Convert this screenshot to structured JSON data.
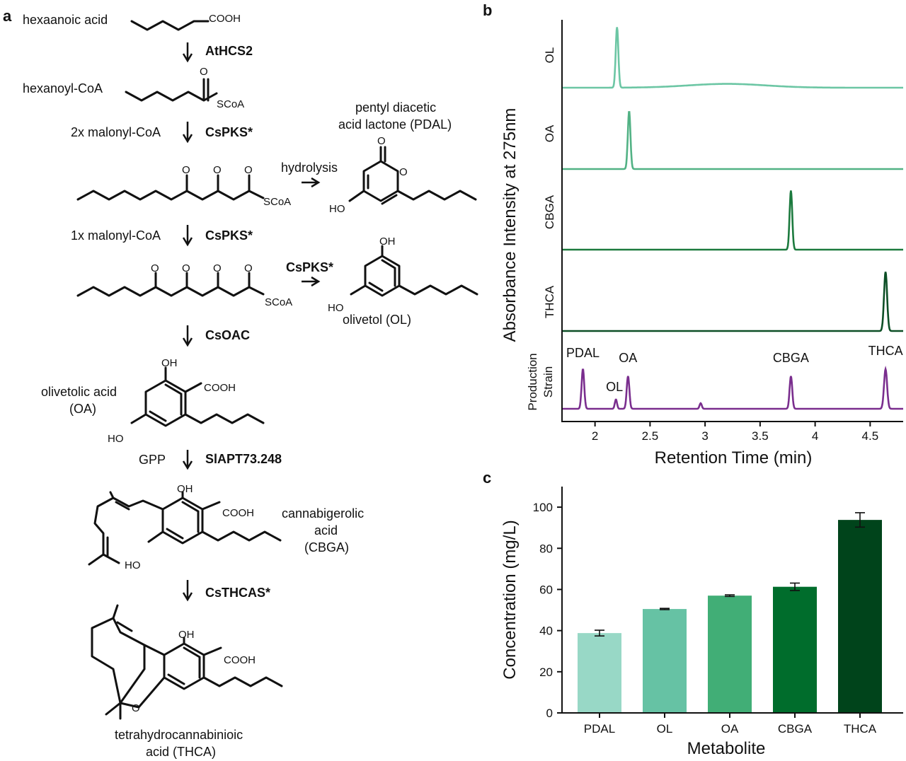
{
  "panels": {
    "a": "a",
    "b": "b",
    "c": "c"
  },
  "pathway": {
    "compounds": {
      "hexanoic": "hexaanoic acid",
      "hexanoyl": "hexanoyl-CoA",
      "pdal1": "pentyl diacetic",
      "pdal2": "acid lactone (PDAL)",
      "olivetol": "olivetol (OL)",
      "oa1": "olivetolic acid",
      "oa2": "(OA)",
      "cbga1": "cannabigerolic",
      "cbga2": "acid",
      "cbga3": "(CBGA)",
      "thca1": "tetrahydrocannabinioic",
      "thca2": "acid (THCA)"
    },
    "enzymes": {
      "s1": "AtHCS2",
      "s2": "CsPKS*",
      "s3": "CsPKS*",
      "s4": "CsPKS*",
      "s5": "CsOAC",
      "s6": "SlAPT73.248",
      "s7": "CsTHCAS*"
    },
    "cosubstrates": {
      "s2": "2x malonyl-CoA",
      "s3": "1x malonyl-CoA",
      "s6": "GPP",
      "hydrolysis": "hydrolysis"
    },
    "groups": {
      "cooh": "COOH",
      "scoa": "SCoA",
      "o": "O",
      "oh": "OH",
      "ho": "HO"
    }
  },
  "chart_data": [
    {
      "type": "line",
      "panel": "b",
      "xlabel": "Retention Time (min)",
      "ylabel": "Absorbance Intensity at 275nm",
      "xlim": [
        1.7,
        4.8
      ],
      "xticks": [
        "2",
        "2.5",
        "3",
        "3.5",
        "4",
        "4.5"
      ],
      "xtick_values": [
        2,
        2.5,
        3,
        3.5,
        4,
        4.5
      ],
      "series": [
        {
          "name": "OL",
          "color": "#6cc6a4",
          "peaks": [
            {
              "x": 2.2,
              "h": 0.95,
              "w": 0.012
            }
          ],
          "bumps": [
            {
              "x": 3.2,
              "h": 0.06,
              "w": 0.35
            }
          ]
        },
        {
          "name": "OA",
          "color": "#52b285",
          "peaks": [
            {
              "x": 2.31,
              "h": 0.95,
              "w": 0.012
            }
          ]
        },
        {
          "name": "CBGA",
          "color": "#1c7a3e",
          "peaks": [
            {
              "x": 3.78,
              "h": 0.95,
              "w": 0.012
            }
          ]
        },
        {
          "name": "THCA",
          "color": "#0d4f26",
          "peaks": [
            {
              "x": 4.64,
              "h": 0.95,
              "w": 0.014
            }
          ]
        },
        {
          "name": "Production\nStrain",
          "color": "#7a2e8e",
          "peaks": [
            {
              "x": 1.89,
              "h": 0.85,
              "w": 0.012
            },
            {
              "x": 2.19,
              "h": 0.2,
              "w": 0.01
            },
            {
              "x": 2.3,
              "h": 0.7,
              "w": 0.012
            },
            {
              "x": 2.96,
              "h": 0.12,
              "w": 0.01
            },
            {
              "x": 3.78,
              "h": 0.7,
              "w": 0.012
            },
            {
              "x": 4.64,
              "h": 0.85,
              "w": 0.014
            }
          ]
        }
      ],
      "annotations": [
        {
          "text": "PDAL",
          "x": 1.89
        },
        {
          "text": "OL",
          "x": 2.19
        },
        {
          "text": "OA",
          "x": 2.3
        },
        {
          "text": "CBGA",
          "x": 3.78
        },
        {
          "text": "THCA",
          "x": 4.64
        }
      ]
    },
    {
      "type": "bar",
      "panel": "c",
      "categories": [
        "PDAL",
        "OL",
        "OA",
        "CBGA",
        "THCA"
      ],
      "values": [
        38.8,
        50.5,
        57.0,
        61.3,
        93.8
      ],
      "errors": [
        1.4,
        0.3,
        0.4,
        1.8,
        3.5
      ],
      "colors": [
        "#98d8c6",
        "#66c2a4",
        "#41ae76",
        "#006d2c",
        "#00441b"
      ],
      "xlabel": "Metabolite",
      "ylabel": "Concentration (mg/L)",
      "ylim": [
        0,
        110
      ],
      "yticks": [
        0,
        20,
        40,
        60,
        80,
        100
      ]
    }
  ]
}
